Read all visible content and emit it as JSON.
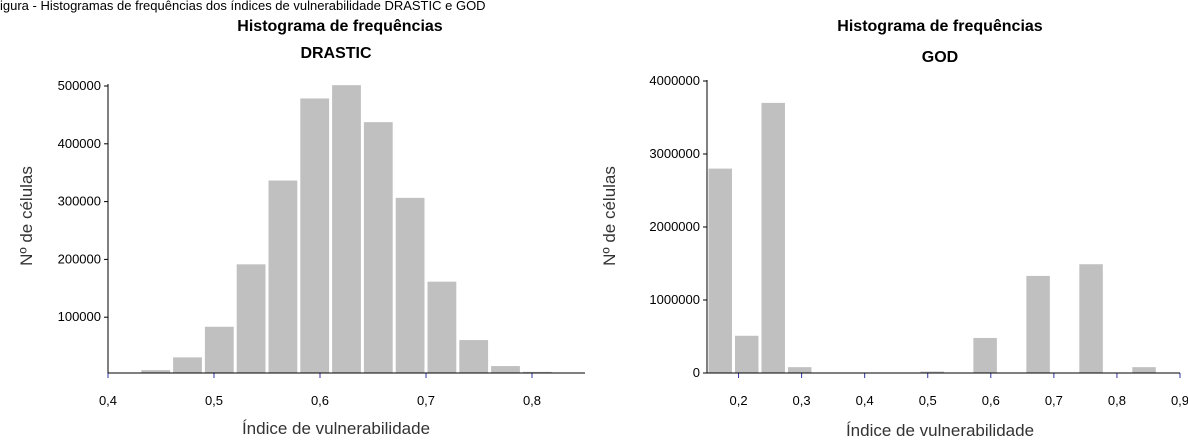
{
  "header_text": "igura - Histogramas de frequências dos índices de vulnerabilidade DRASTIC e GOD",
  "chart_data": [
    {
      "type": "bar",
      "title": "Histograma de frequências",
      "subtitle": "DRASTIC",
      "xlabel": "Índice de vulnerabilidade",
      "ylabel": "Nº de células",
      "xlim": [
        0.4,
        0.85
      ],
      "ylim": [
        0,
        500000
      ],
      "xticks": [
        0.4,
        0.5,
        0.6,
        0.7,
        0.8
      ],
      "xtick_labels": [
        "0,4",
        "0,5",
        "0,6",
        "0,7",
        "0,8"
      ],
      "yticks": [
        100000,
        200000,
        300000,
        400000,
        500000
      ],
      "ytick_labels": [
        "100000",
        "200000",
        "300000",
        "400000",
        "500000"
      ],
      "bin_width": 0.03,
      "bins_start": [
        0.43,
        0.46,
        0.49,
        0.52,
        0.55,
        0.58,
        0.61,
        0.64,
        0.67,
        0.7,
        0.73,
        0.76,
        0.79
      ],
      "values": [
        5000,
        27000,
        80000,
        188000,
        333000,
        475000,
        498000,
        434000,
        303000,
        158000,
        57000,
        12000,
        2000
      ]
    },
    {
      "type": "bar",
      "title": "Histograma de frequências",
      "subtitle": "GOD",
      "xlabel": "Índice de vulnerabilidade",
      "ylabel": "Nº de células",
      "xlim": [
        0.15,
        0.9
      ],
      "ylim": [
        0,
        4000000
      ],
      "xticks": [
        0.2,
        0.3,
        0.4,
        0.5,
        0.6,
        0.7,
        0.8,
        0.9
      ],
      "xtick_labels": [
        "0,2",
        "0,3",
        "0,4",
        "0,5",
        "0,6",
        "0,7",
        "0,8",
        "0,9"
      ],
      "yticks": [
        0,
        1000000,
        2000000,
        3000000,
        4000000
      ],
      "ytick_labels": [
        "0",
        "1000000",
        "2000000",
        "3000000",
        "4000000"
      ],
      "bin_width": 0.042,
      "bins_start": [
        0.15,
        0.192,
        0.234,
        0.276,
        0.318,
        0.36,
        0.402,
        0.444,
        0.486,
        0.528,
        0.57,
        0.612,
        0.654,
        0.696,
        0.738,
        0.78,
        0.822,
        0.864
      ],
      "values": [
        2800000,
        510000,
        3700000,
        80000,
        5000,
        5000,
        5000,
        5000,
        20000,
        5000,
        480000,
        0,
        1330000,
        0,
        1490000,
        0,
        80000,
        0
      ]
    }
  ]
}
